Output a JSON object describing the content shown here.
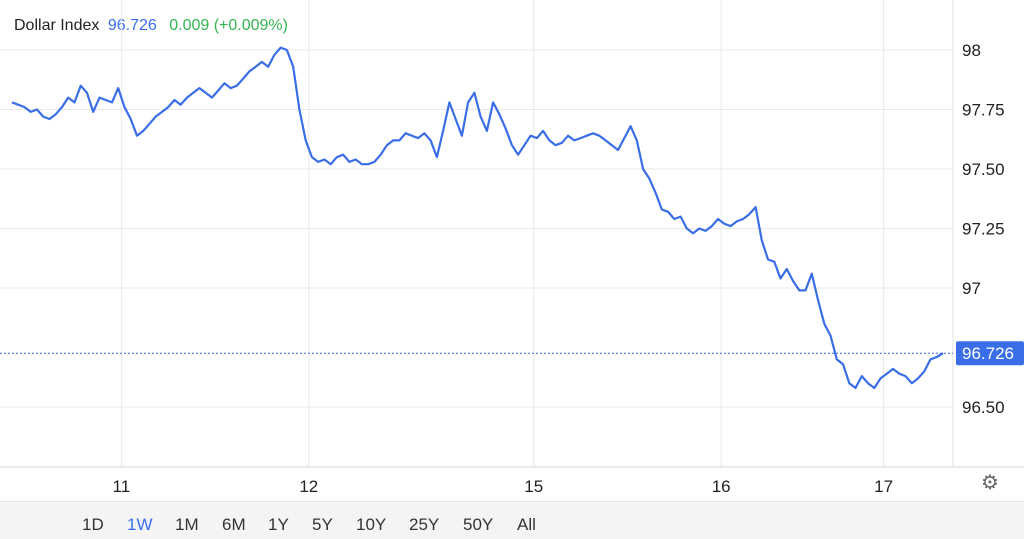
{
  "header": {
    "name": "Dollar Index",
    "price": "96.726",
    "change": "0.009 (+0.009%)"
  },
  "colors": {
    "line": "#3a6ee8",
    "positive": "#33b552",
    "grid": "#e8e8e8",
    "price_tag": "#3a6ee8"
  },
  "chart_data": {
    "type": "line",
    "title": "Dollar Index",
    "ylim": [
      96.25,
      98.2
    ],
    "yticks": [
      {
        "value": 98,
        "label": "98"
      },
      {
        "value": 97.75,
        "label": "97.75"
      },
      {
        "value": 97.5,
        "label": "97.50"
      },
      {
        "value": 97.25,
        "label": "97.25"
      },
      {
        "value": 97,
        "label": "97"
      },
      {
        "value": 96.5,
        "label": "96.50"
      }
    ],
    "xticks": [
      "11",
      "12",
      "15",
      "16",
      "17"
    ],
    "last_price_label": "96.726",
    "last_value": 96.726,
    "grid": true,
    "x": [
      0,
      1,
      2,
      3,
      4,
      5,
      6,
      7,
      8,
      9,
      10,
      11,
      12,
      13,
      14,
      15,
      16,
      17,
      18,
      19,
      20,
      21,
      22,
      23,
      24,
      25,
      26,
      27,
      28,
      29,
      30,
      31,
      32,
      33,
      34,
      35,
      36,
      37,
      38,
      39,
      40,
      41,
      42,
      43,
      44,
      45,
      46,
      47,
      48,
      49,
      50,
      51,
      52,
      53,
      54,
      55,
      56,
      57,
      58,
      59,
      60,
      61,
      62,
      63,
      64,
      65,
      66,
      67,
      68,
      69,
      70,
      71,
      72,
      73,
      74,
      75,
      76,
      77,
      78,
      79,
      80,
      81,
      82,
      83,
      84,
      85,
      86,
      87,
      88,
      89,
      90,
      91,
      92,
      93,
      94,
      95,
      96,
      97,
      98,
      99,
      100,
      101,
      102,
      103,
      104,
      105,
      106,
      107,
      108,
      109,
      110,
      111,
      112,
      113,
      114,
      115,
      116,
      117,
      118,
      119,
      120,
      121,
      122,
      123,
      124,
      125,
      126,
      127,
      128,
      129,
      130,
      131,
      132,
      133,
      134,
      135,
      136,
      137,
      138,
      139,
      140,
      141,
      142,
      143,
      144,
      145,
      146,
      147,
      148,
      149
    ],
    "values": [
      97.78,
      97.77,
      97.76,
      97.74,
      97.75,
      97.72,
      97.71,
      97.73,
      97.76,
      97.8,
      97.78,
      97.85,
      97.82,
      97.74,
      97.8,
      97.79,
      97.78,
      97.84,
      97.76,
      97.71,
      97.64,
      97.66,
      97.69,
      97.72,
      97.74,
      97.76,
      97.79,
      97.77,
      97.8,
      97.82,
      97.84,
      97.82,
      97.8,
      97.83,
      97.86,
      97.84,
      97.85,
      97.88,
      97.91,
      97.93,
      97.95,
      97.93,
      97.98,
      98.01,
      98.0,
      97.93,
      97.75,
      97.62,
      97.55,
      97.53,
      97.54,
      97.52,
      97.55,
      97.56,
      97.53,
      97.54,
      97.52,
      97.52,
      97.53,
      97.56,
      97.6,
      97.62,
      97.62,
      97.65,
      97.64,
      97.63,
      97.65,
      97.62,
      97.55,
      97.66,
      97.78,
      97.71,
      97.64,
      97.78,
      97.82,
      97.72,
      97.66,
      97.78,
      97.73,
      97.67,
      97.6,
      97.56,
      97.6,
      97.64,
      97.63,
      97.66,
      97.62,
      97.6,
      97.61,
      97.64,
      97.62,
      97.63,
      97.64,
      97.65,
      97.64,
      97.62,
      97.6,
      97.58,
      97.63,
      97.68,
      97.62,
      97.5,
      97.46,
      97.4,
      97.33,
      97.32,
      97.29,
      97.3,
      97.25,
      97.23,
      97.25,
      97.24,
      97.26,
      97.29,
      97.27,
      97.26,
      97.28,
      97.29,
      97.31,
      97.34,
      97.2,
      97.12,
      97.11,
      97.04,
      97.08,
      97.03,
      96.99,
      96.99,
      97.06,
      96.95,
      96.85,
      96.8,
      96.7,
      96.68,
      96.6,
      96.58,
      96.63,
      96.6,
      96.58,
      96.62,
      96.64,
      96.66,
      96.64,
      96.63,
      96.6,
      96.62,
      96.65,
      96.7,
      96.71,
      96.726
    ]
  },
  "settings": {
    "icon": "gear-icon",
    "glyph": "⚙"
  },
  "ranges": [
    "1D",
    "1W",
    "1M",
    "6M",
    "1Y",
    "5Y",
    "10Y",
    "25Y",
    "50Y",
    "All"
  ],
  "active_range": "1W"
}
